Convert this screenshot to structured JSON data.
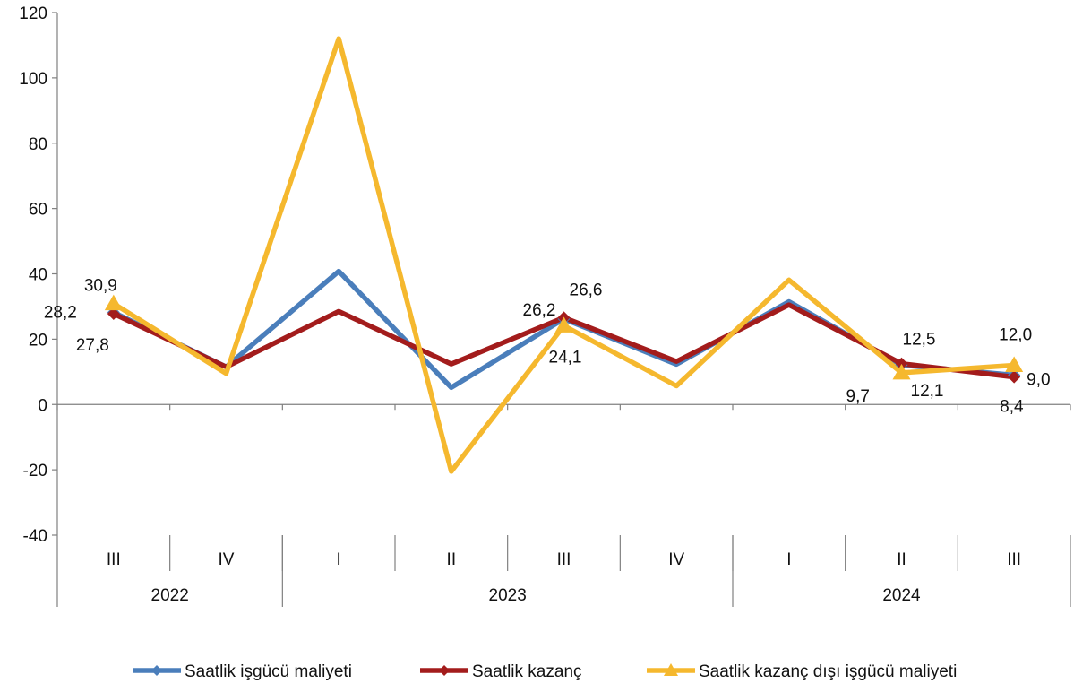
{
  "chart_data": {
    "type": "line",
    "title": "",
    "xlabel": "",
    "ylabel": "",
    "ylim": [
      -40,
      120
    ],
    "yticks": [
      -40,
      -20,
      0,
      20,
      40,
      60,
      80,
      100,
      120
    ],
    "grid": false,
    "legend_position": "bottom",
    "categories": [
      "III",
      "IV",
      "I",
      "II",
      "III",
      "IV",
      "I",
      "II",
      "III"
    ],
    "year_groups": [
      {
        "label": "2022",
        "start": 0,
        "end": 1
      },
      {
        "label": "2023",
        "start": 2,
        "end": 5
      },
      {
        "label": "2024",
        "start": 6,
        "end": 8
      }
    ],
    "series": [
      {
        "name": "Saatlik işgücü maliyeti",
        "color": "#4a7ebb",
        "marker": "diamond",
        "values": [
          28.2,
          11.5,
          40.8,
          5.2,
          26.2,
          12.3,
          31.5,
          12.1,
          9.0
        ]
      },
      {
        "name": "Saatlik kazanç",
        "color": "#a31c1c",
        "marker": "diamond",
        "values": [
          27.8,
          11.5,
          28.5,
          12.4,
          26.6,
          13.2,
          30.5,
          12.5,
          8.4
        ]
      },
      {
        "name": "Saatlik kazanç dışı işgücü maliyeti",
        "color": "#f5b82e",
        "marker": "triangle",
        "values": [
          30.9,
          9.5,
          112.0,
          -20.5,
          24.1,
          5.7,
          38.1,
          9.7,
          12.0
        ]
      }
    ],
    "annotations": [
      {
        "text": "30,9",
        "index": 0,
        "value": 30.9,
        "series": 2,
        "dx": -33,
        "dy": -14
      },
      {
        "text": "28,2",
        "index": 0,
        "value": 28.2,
        "series": 0,
        "dx": -78,
        "dy": 6
      },
      {
        "text": "27,8",
        "index": 0,
        "value": 27.8,
        "series": 1,
        "dx": -42,
        "dy": 41
      },
      {
        "text": "26,2",
        "index": 4,
        "value": 26.2,
        "series": 0,
        "dx": -46,
        "dy": -4
      },
      {
        "text": "26,6",
        "index": 4,
        "value": 26.6,
        "series": 1,
        "dx": 6,
        "dy": -25
      },
      {
        "text": "24,1",
        "index": 4,
        "value": 24.1,
        "series": 2,
        "dx": -17,
        "dy": 41
      },
      {
        "text": "12,5",
        "index": 7,
        "value": 12.5,
        "series": 1,
        "dx": 1,
        "dy": -21
      },
      {
        "text": "9,7",
        "index": 7,
        "value": 9.7,
        "series": 2,
        "dx": -62,
        "dy": 32
      },
      {
        "text": "12,1",
        "index": 7,
        "value": 12.1,
        "series": 0,
        "dx": 10,
        "dy": 35
      },
      {
        "text": "12,0",
        "index": 8,
        "value": 12.0,
        "series": 2,
        "dx": -17,
        "dy": -28
      },
      {
        "text": "9,0",
        "index": 8,
        "value": 9.0,
        "series": 0,
        "dx": 14,
        "dy": 11
      },
      {
        "text": "8,4",
        "index": 8,
        "value": 8.4,
        "series": 1,
        "dx": -16,
        "dy": 39
      }
    ]
  }
}
